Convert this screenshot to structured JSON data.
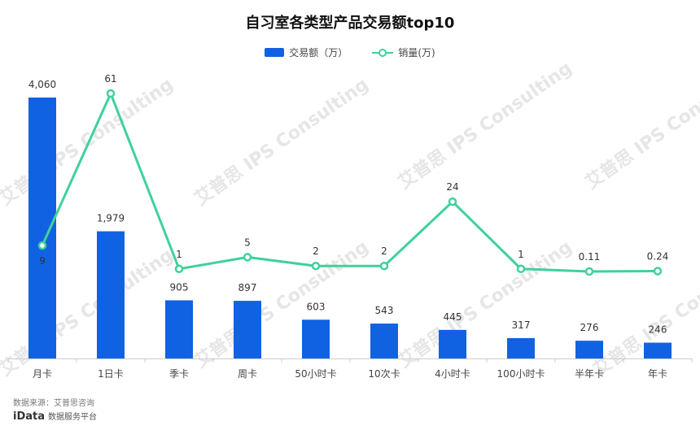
{
  "chart_data": {
    "type": "bar",
    "title": "自习室各类型产品交易额top10",
    "categories": [
      "月卡",
      "1日卡",
      "季卡",
      "周卡",
      "50小时卡",
      "10次卡",
      "4小时卡",
      "100小时卡",
      "半年卡",
      "年卡"
    ],
    "series": [
      {
        "name": "交易额（万）",
        "type": "bar",
        "color": "#1162e3",
        "values": [
          4060,
          1979,
          905,
          897,
          603,
          543,
          445,
          317,
          276,
          246
        ],
        "labels": [
          "4,060",
          "1,979",
          "905",
          "897",
          "603",
          "543",
          "445",
          "317",
          "276",
          "246"
        ]
      },
      {
        "name": "销量(万)",
        "type": "line",
        "color": "#3fd19b",
        "values": [
          9,
          61,
          1,
          5,
          2,
          2,
          24,
          1,
          0.11,
          0.24
        ],
        "labels": [
          "9",
          "61",
          "1",
          "5",
          "2",
          "2",
          "24",
          "1",
          "0.11",
          "0.24"
        ]
      }
    ],
    "bar_axis_range": [
      0,
      4060
    ],
    "line_axis_range": [
      -10,
      61
    ],
    "grid": false,
    "legend_position": "top-center"
  },
  "source": {
    "text": "数据来源：艾普思咨询",
    "brand": "iData",
    "brand_caption": "数据服务平台"
  },
  "watermark": "艾普思 IPS Consulting",
  "colors": {
    "axis": "#cccccc",
    "tick_text": "#444444",
    "label_text": "#333333"
  }
}
